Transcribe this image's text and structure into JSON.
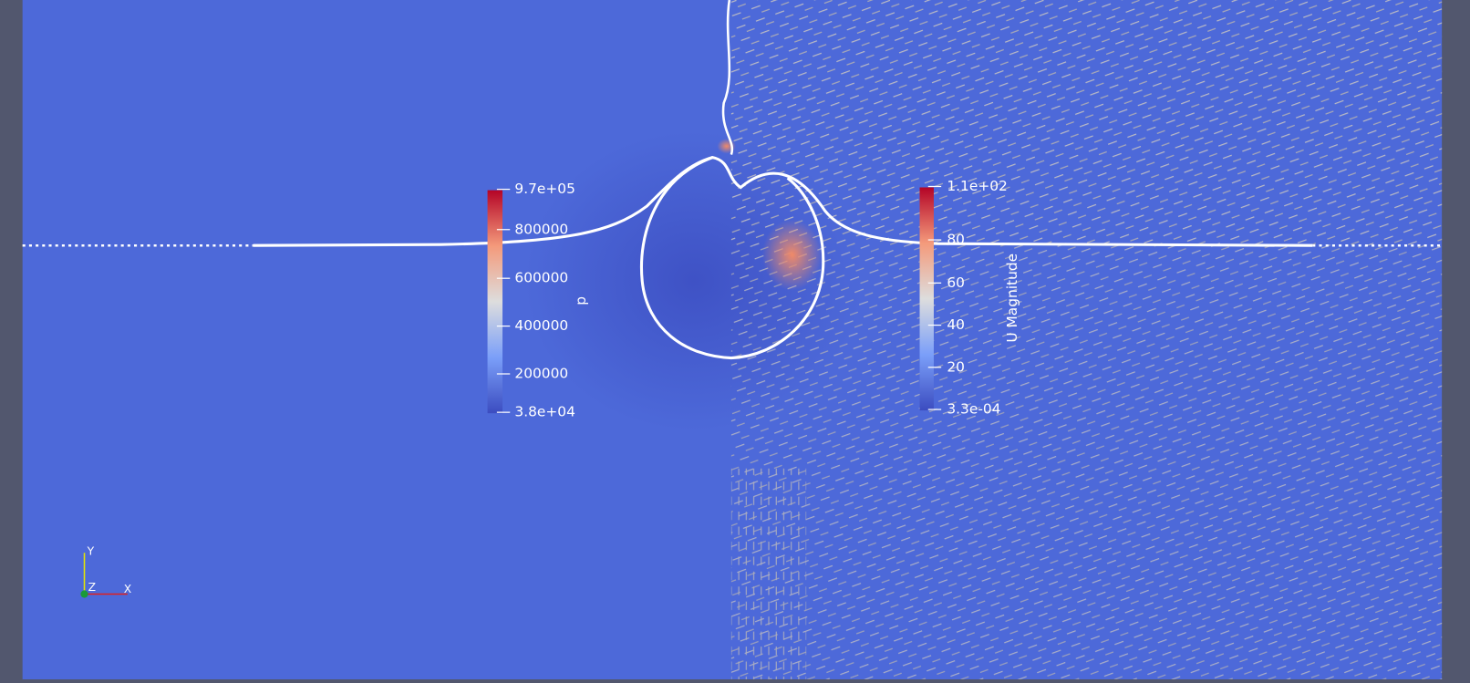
{
  "colorbars": [
    {
      "title": "p",
      "labels": [
        "9.7e+05",
        "800000",
        "600000",
        "400000",
        "200000",
        "3.8e+04"
      ]
    },
    {
      "title": "U Magnitude",
      "labels": [
        "1.1e+02",
        "80",
        "60",
        "40",
        "20",
        "3.3e-04"
      ]
    }
  ],
  "axes": {
    "y": "Y",
    "z": "Z",
    "x": "X"
  }
}
